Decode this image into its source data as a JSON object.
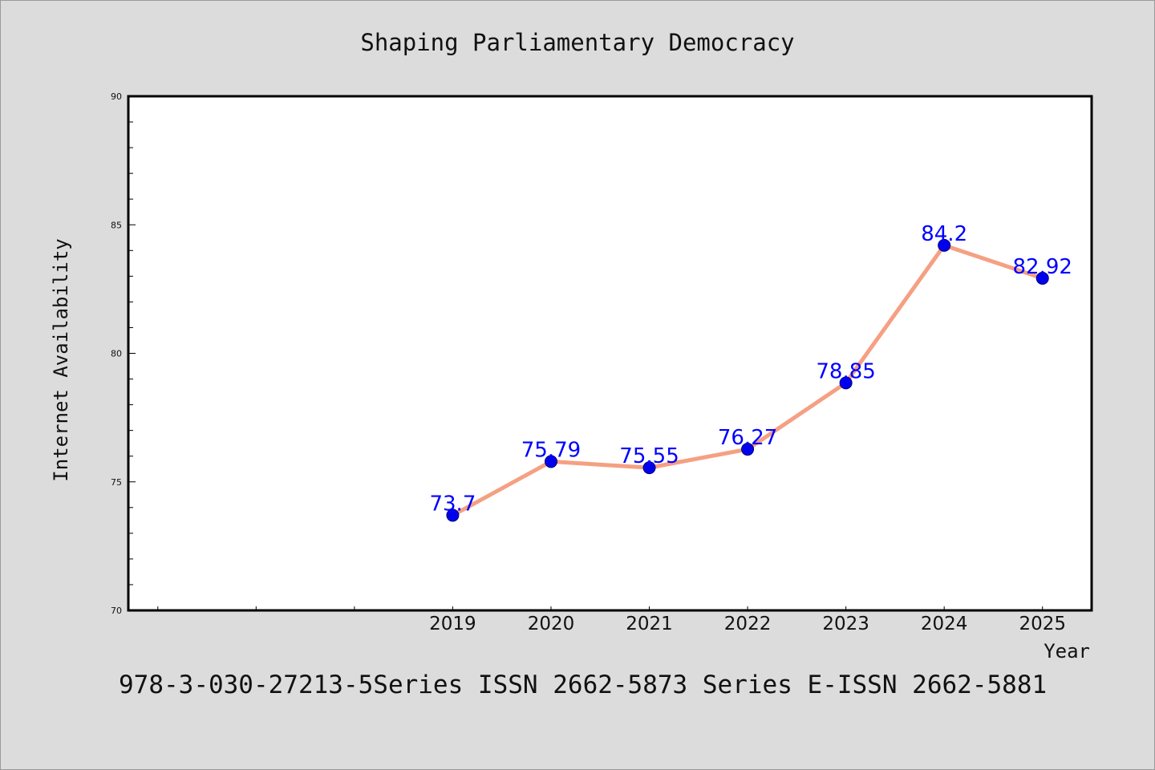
{
  "chart_data": {
    "type": "line",
    "title": "Shaping Parliamentary Democracy",
    "xlabel": "Year",
    "ylabel": "Internet Availability",
    "x": [
      2019,
      2020,
      2021,
      2022,
      2023,
      2024,
      2025
    ],
    "xlim": [
      2015.7,
      2025.5
    ],
    "ylim": [
      70,
      90
    ],
    "yticks": [
      70,
      75,
      80,
      85,
      90
    ],
    "grid": false,
    "series": [
      {
        "values": [
          73.7,
          75.79,
          75.55,
          76.27,
          78.85,
          84.2,
          82.92
        ],
        "labels": [
          "73.7",
          "75.79",
          "75.55",
          "76.27",
          "78.85",
          "84.2",
          "82.92"
        ],
        "line_color": "#f5a083",
        "marker_color": "#0000ee",
        "label_color": "#0000ff"
      }
    ]
  },
  "footer": {
    "text": "978-3-030-27213-5Series ISSN 2662-5873 Series E-ISSN 2662-5881"
  }
}
